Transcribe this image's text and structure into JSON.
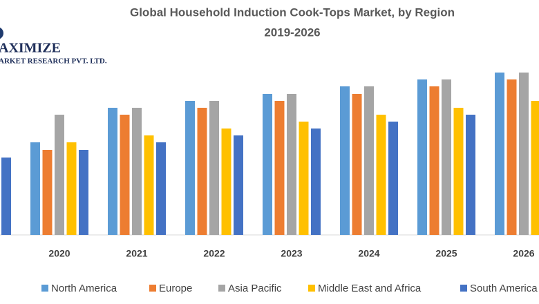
{
  "chart_data": {
    "type": "bar",
    "title": "Global Household Induction Cook-Tops Market, by Region",
    "subtitle": "2019-2026",
    "logo": {
      "name": "AXIMIZE",
      "tagline": "ARKET RESEARCH PVT. LTD."
    },
    "categories": [
      null,
      "2020",
      "2021",
      "2022",
      "2023",
      "2024",
      "2025",
      "2026"
    ],
    "series": [
      {
        "name": "North America",
        "color": "#5b9bd5",
        "values": [
          null,
          134,
          184,
          194,
          204,
          215,
          225,
          235
        ]
      },
      {
        "name": "Europe",
        "color": "#ed7d31",
        "values": [
          null,
          123,
          174,
          184,
          194,
          204,
          215,
          225
        ]
      },
      {
        "name": "Asia Pacific",
        "color": "#a5a5a5",
        "values": [
          null,
          174,
          184,
          194,
          204,
          215,
          225,
          235
        ]
      },
      {
        "name": "Middle East and Africa",
        "color": "#ffc000",
        "values": [
          null,
          134,
          144,
          154,
          164,
          174,
          184,
          194
        ]
      },
      {
        "name": "South America",
        "color": "#4472c4",
        "values": [
          112,
          123,
          134,
          144,
          154,
          164,
          174,
          null
        ]
      }
    ],
    "ylim": [
      0,
      240
    ]
  }
}
